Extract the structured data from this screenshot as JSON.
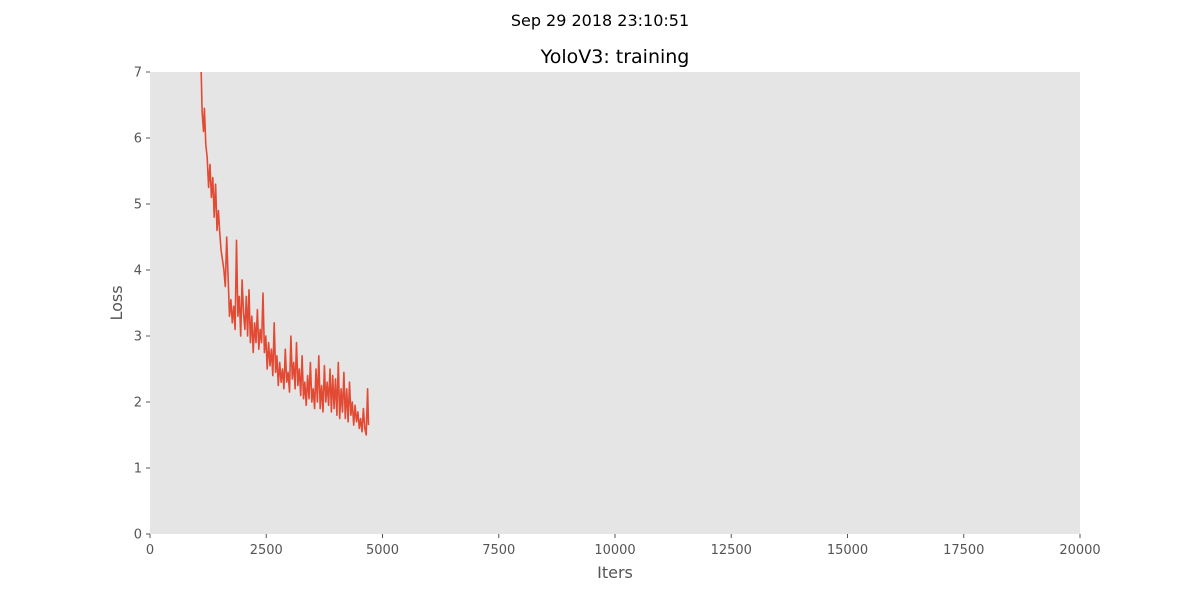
{
  "figure": {
    "suptitle": "Sep 29 2018 23:10:51"
  },
  "chart_data": {
    "type": "line",
    "title": "YoloV3: training",
    "xlabel": "Iters",
    "ylabel": "Loss",
    "xlim": [
      0,
      20000
    ],
    "ylim": [
      0,
      7
    ],
    "x_ticks": [
      0,
      2500,
      5000,
      7500,
      10000,
      12500,
      15000,
      17500,
      20000
    ],
    "y_ticks": [
      0,
      1,
      2,
      3,
      4,
      5,
      6,
      7
    ],
    "grid": false,
    "background_color": "#e5e5e5",
    "series": [
      {
        "color": "#e24a33",
        "x": [
          1100,
          1120,
          1150,
          1170,
          1200,
          1230,
          1260,
          1290,
          1320,
          1350,
          1380,
          1410,
          1440,
          1470,
          1500,
          1530,
          1560,
          1590,
          1620,
          1650,
          1680,
          1710,
          1740,
          1770,
          1800,
          1830,
          1860,
          1890,
          1920,
          1950,
          1980,
          2010,
          2040,
          2070,
          2100,
          2130,
          2160,
          2190,
          2220,
          2250,
          2280,
          2310,
          2340,
          2370,
          2400,
          2430,
          2460,
          2490,
          2520,
          2550,
          2580,
          2610,
          2640,
          2670,
          2700,
          2730,
          2760,
          2790,
          2820,
          2850,
          2880,
          2910,
          2940,
          2970,
          3000,
          3030,
          3060,
          3090,
          3120,
          3150,
          3180,
          3210,
          3240,
          3270,
          3300,
          3330,
          3360,
          3390,
          3420,
          3450,
          3480,
          3510,
          3540,
          3570,
          3600,
          3630,
          3660,
          3690,
          3720,
          3750,
          3780,
          3810,
          3840,
          3870,
          3900,
          3930,
          3960,
          3990,
          4020,
          4050,
          4080,
          4110,
          4140,
          4170,
          4200,
          4230,
          4260,
          4290,
          4320,
          4350,
          4380,
          4410,
          4440,
          4470,
          4500,
          4530,
          4560,
          4590,
          4620,
          4650,
          4680,
          4700
        ],
        "y": [
          7.0,
          6.4,
          6.1,
          6.45,
          5.9,
          5.7,
          5.25,
          5.6,
          5.1,
          5.4,
          4.8,
          5.3,
          4.6,
          4.9,
          4.55,
          4.3,
          4.15,
          4.0,
          3.75,
          4.5,
          3.9,
          3.3,
          3.55,
          3.2,
          3.45,
          3.1,
          4.45,
          3.3,
          3.6,
          3.0,
          3.85,
          3.35,
          3.1,
          3.6,
          3.0,
          3.7,
          2.9,
          3.3,
          2.75,
          3.2,
          2.9,
          3.4,
          2.8,
          3.1,
          2.9,
          3.65,
          2.75,
          3.0,
          2.5,
          2.9,
          2.55,
          2.8,
          2.4,
          3.2,
          2.45,
          2.7,
          2.25,
          2.6,
          2.3,
          2.5,
          2.2,
          2.8,
          2.3,
          2.45,
          2.15,
          3.0,
          2.35,
          2.6,
          2.2,
          2.9,
          2.25,
          2.5,
          2.1,
          2.7,
          2.05,
          2.3,
          1.95,
          2.4,
          2.05,
          2.6,
          2.0,
          2.2,
          1.9,
          2.5,
          2.0,
          2.7,
          1.9,
          2.25,
          1.85,
          2.55,
          2.0,
          2.3,
          1.95,
          2.5,
          1.85,
          2.4,
          1.9,
          2.35,
          1.8,
          2.6,
          1.75,
          2.2,
          1.85,
          2.45,
          1.75,
          2.2,
          1.7,
          2.3,
          1.8,
          2.0,
          1.65,
          1.95,
          1.7,
          1.85,
          1.6,
          1.75,
          1.55,
          1.9,
          1.6,
          1.5,
          2.2,
          1.65
        ]
      }
    ]
  }
}
